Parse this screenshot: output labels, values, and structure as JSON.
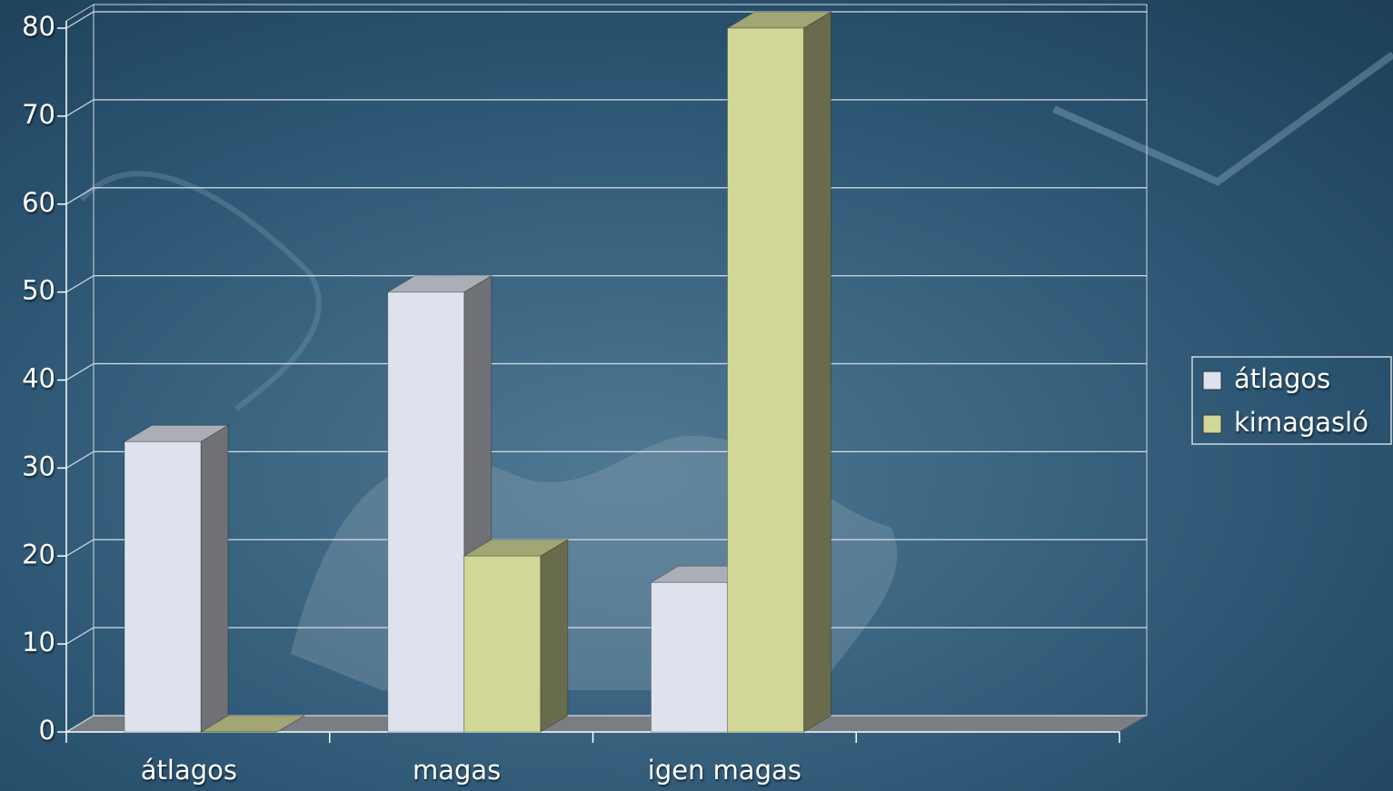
{
  "chart_data": {
    "type": "bar3d",
    "categories": [
      "átlagos",
      "magas",
      "igen magas",
      null
    ],
    "series": [
      {
        "name": "átlagos",
        "color": "#dde2ec",
        "values": [
          33,
          50,
          17,
          null
        ]
      },
      {
        "name": "kimagasló",
        "color": "#d1d797",
        "values": [
          0,
          20,
          80,
          null
        ]
      }
    ],
    "ylim": [
      0,
      80
    ],
    "yticks": [
      0,
      10,
      20,
      30,
      40,
      50,
      60,
      70,
      80
    ],
    "grid": true,
    "legend": "right"
  }
}
